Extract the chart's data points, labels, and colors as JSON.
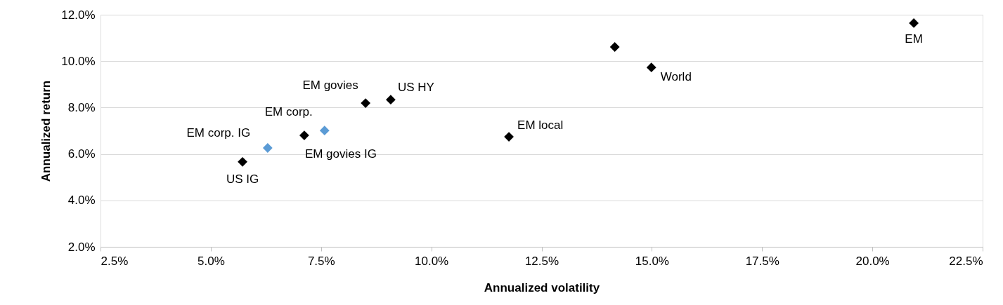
{
  "chart_data": {
    "type": "scatter",
    "xlabel": "Annualized volatility",
    "ylabel": "Annualized return",
    "series": [
      {
        "color": "#000000",
        "x": [
          5.72,
          7.12,
          8.51,
          9.08,
          11.76,
          14.16,
          14.99,
          20.94
        ],
        "values": [
          5.66,
          6.8,
          8.19,
          8.34,
          6.74,
          10.61,
          9.73,
          11.64
        ],
        "value_labels": [
          "US IG",
          "EM govies IG",
          "EM govies",
          "US HY",
          "EM local",
          null,
          "World",
          "EM"
        ]
      },
      {
        "color": "#5b9bd5",
        "x": [
          6.29,
          7.58
        ],
        "values": [
          6.26,
          7.01
        ],
        "value_labels": [
          "EM corp. IG",
          "EM corp."
        ]
      }
    ],
    "xlim": [
      2.5,
      22.5
    ],
    "ylim": [
      2,
      12
    ],
    "xticks": [
      {
        "value": 2.5,
        "label": "2.5%"
      },
      {
        "value": 5,
        "label": "5.0%"
      },
      {
        "value": 7.5,
        "label": "7.5%"
      },
      {
        "value": 10,
        "label": "10.0%"
      },
      {
        "value": 12.5,
        "label": "12.5%"
      },
      {
        "value": 15,
        "label": "15.0%"
      },
      {
        "value": 17.5,
        "label": "17.5%"
      },
      {
        "value": 20,
        "label": "20.0%"
      },
      {
        "value": 22.5,
        "label": "22.5%"
      }
    ],
    "yticks": [
      {
        "value": 2,
        "label": "2.0%"
      },
      {
        "value": 4,
        "label": "4.0%"
      },
      {
        "value": 6,
        "label": "6.0%"
      },
      {
        "value": 8,
        "label": "8.0%"
      },
      {
        "value": 10,
        "label": "10.0%"
      },
      {
        "value": 12,
        "label": "12.0%"
      }
    ],
    "grid": "y",
    "marker": "diamond"
  }
}
